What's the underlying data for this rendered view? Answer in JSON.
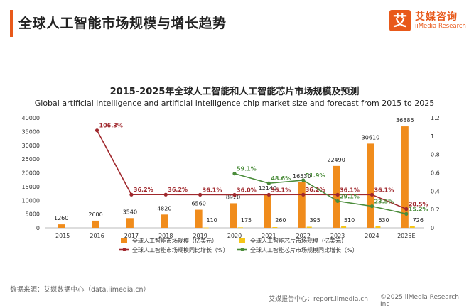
{
  "header": {
    "title": "全球人工智能市场规模与增长趋势"
  },
  "brand": {
    "logo_glyph": "艾",
    "name_cn": "艾媒咨询",
    "name_en": "iiMedia Research",
    "color": "#e8591a"
  },
  "footer": {
    "source": "数据来源：艾媒数据中心（data.iimedia.cn）",
    "report": "艾媒报告中心：report.iimedia.cn",
    "copyright": "©2025  iiMedia Research  Inc"
  },
  "chart_data": {
    "type": "bar",
    "title": "2015-2025年全球人工智能和人工智能芯片市场规模及预测",
    "subtitle": "Global artificial intelligence and artificial intelligence chip market size and forecast from 2015 to 2025",
    "categories": [
      "2015",
      "2016",
      "2017",
      "2018",
      "2019",
      "2020",
      "2021",
      "2022",
      "2023",
      "2024",
      "2025E"
    ],
    "y_left": {
      "ylim": [
        0,
        40000
      ],
      "ticks": [
        0,
        5000,
        10000,
        15000,
        20000,
        25000,
        30000,
        35000,
        40000
      ]
    },
    "y_right": {
      "ylim": [
        0,
        1.2
      ],
      "ticks": [
        "0",
        "0.2",
        "0.4",
        "0.6",
        "0.8",
        "1",
        "1.2"
      ]
    },
    "series": [
      {
        "name": "全球人工智能市场规模（亿美元）",
        "kind": "bar",
        "axis": "left",
        "color": "#f08c1c",
        "values": [
          1260,
          2600,
          3540,
          4820,
          6560,
          8920,
          12140,
          16530,
          22490,
          30610,
          36885
        ],
        "labels": [
          "1260",
          "2600",
          "3540",
          "4820",
          "6560",
          "8920",
          "12140",
          "16530",
          "22490",
          "30610",
          "36885"
        ]
      },
      {
        "name": "全球人工智能芯片市场规模（亿美元）",
        "kind": "bar",
        "axis": "left",
        "color": "#f5c518",
        "values": [
          null,
          null,
          null,
          null,
          110,
          175,
          260,
          395,
          510,
          630,
          726
        ],
        "labels": [
          "",
          "",
          "",
          "",
          "110",
          "175",
          "260",
          "395",
          "510",
          "630",
          "726"
        ]
      },
      {
        "name": "全球人工智能市场规模同比增长（%）",
        "kind": "line",
        "axis": "right",
        "color": "#a0282d",
        "values": [
          null,
          1.063,
          0.362,
          0.362,
          0.361,
          0.36,
          0.361,
          0.362,
          0.361,
          0.361,
          0.205
        ],
        "labels": [
          "",
          "106.3%",
          "36.2%",
          "36.2%",
          "36.1%",
          "36.0%",
          "36.1%",
          "36.2%",
          "36.1%",
          "36.1%",
          "20.5%"
        ]
      },
      {
        "name": "全球人工智能芯片市场规模同比增长（%）",
        "kind": "line",
        "axis": "right",
        "color": "#4a8c3a",
        "values": [
          null,
          null,
          null,
          null,
          null,
          0.591,
          0.486,
          0.519,
          0.291,
          0.235,
          0.152
        ],
        "labels": [
          "",
          "",
          "",
          "",
          "",
          "59.1%",
          "48.6%",
          "51.9%",
          "29.1%",
          "23.5%",
          "15.2%"
        ]
      }
    ],
    "grid": false,
    "legend": "bottom"
  }
}
